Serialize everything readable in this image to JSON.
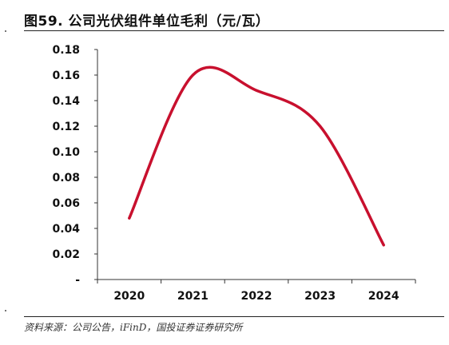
{
  "header": {
    "title": "图59. 公司光伏组件单位毛利（元/瓦）"
  },
  "footer": {
    "source": "资料来源：公司公告，iFinD，国投证券证券研究所"
  },
  "chart_data": {
    "type": "line",
    "title": "图59. 公司光伏组件单位毛利（元/瓦）",
    "xlabel": "",
    "ylabel": "",
    "categories": [
      "2020",
      "2021",
      "2022",
      "2023",
      "2024"
    ],
    "series": [
      {
        "values": [
          0.048,
          0.16,
          0.148,
          0.12,
          0.027
        ],
        "color": "#c8102e"
      }
    ],
    "ylim": [
      0,
      0.18
    ],
    "yticks": [
      0,
      0.02,
      0.04,
      0.06,
      0.08,
      0.1,
      0.12,
      0.14,
      0.16,
      0.18
    ],
    "ytick_labels": [
      "-",
      "0.02",
      "0.04",
      "0.06",
      "0.08",
      "0.10",
      "0.12",
      "0.14",
      "0.16",
      "0.18"
    ],
    "smooth": true,
    "grid": false,
    "legend": "none"
  }
}
